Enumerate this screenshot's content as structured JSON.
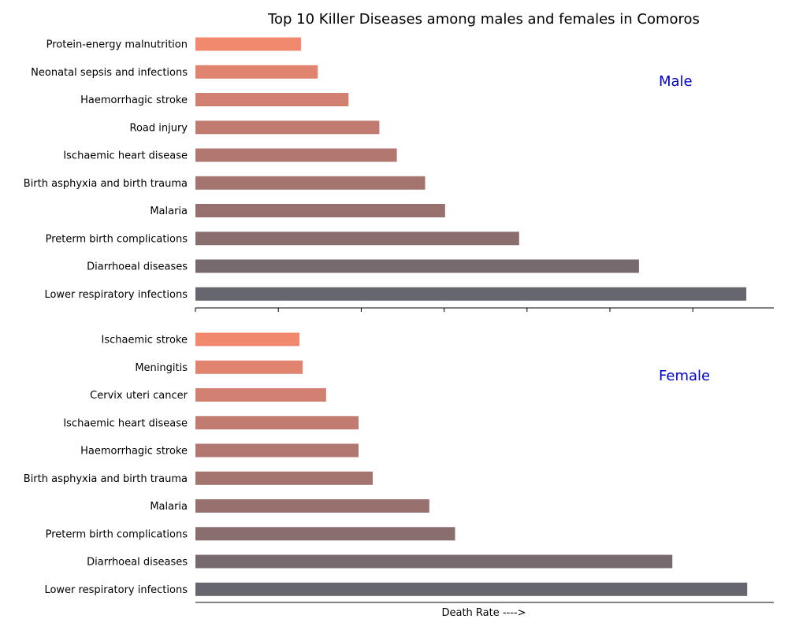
{
  "title": "Top 10 Killer Diseases among males and females in Comoros",
  "xlabel": "Death Rate ---->",
  "chart_data": [
    {
      "type": "bar",
      "orientation": "horizontal",
      "panel_label": "Male",
      "categories": [
        "Protein-energy malnutrition",
        "Neonatal sepsis and infections",
        "Haemorrhagic stroke",
        "Road injury",
        "Ischaemic heart disease",
        "Birth asphyxia and birth trauma",
        "Malaria",
        "Preterm birth complications",
        "Diarrhoeal diseases",
        "Lower respiratory infections"
      ],
      "values": [
        12.7,
        14.7,
        18.4,
        22.1,
        24.2,
        27.6,
        30.0,
        38.9,
        53.3,
        66.2
      ],
      "xlim": [
        0,
        69.5
      ],
      "colors": [
        "#f0896e",
        "#e08470",
        "#d07f70",
        "#c27b70",
        "#b27770",
        "#a4746e",
        "#97706e",
        "#896e6e",
        "#776a6e",
        "#66666e"
      ],
      "grid": false,
      "legend": "none",
      "label_color": "#0000cc"
    },
    {
      "type": "bar",
      "orientation": "horizontal",
      "panel_label": "Female",
      "categories": [
        "Ischaemic stroke",
        "Meningitis",
        "Cervix uteri cancer",
        "Ischaemic heart disease",
        "Haemorrhagic stroke",
        "Birth asphyxia and birth trauma",
        "Malaria",
        "Preterm birth complications",
        "Diarrhoeal diseases",
        "Lower respiratory infections"
      ],
      "values": [
        12.5,
        12.9,
        15.7,
        19.6,
        19.6,
        21.3,
        28.1,
        31.2,
        57.3,
        66.3
      ],
      "xlim": [
        0,
        69.5
      ],
      "colors": [
        "#f0896e",
        "#e08470",
        "#d07f70",
        "#c27b70",
        "#b27770",
        "#a4746e",
        "#97706e",
        "#896e6e",
        "#776a6e",
        "#66666e"
      ],
      "grid": false,
      "legend": "none",
      "label_color": "#0000cc"
    }
  ]
}
